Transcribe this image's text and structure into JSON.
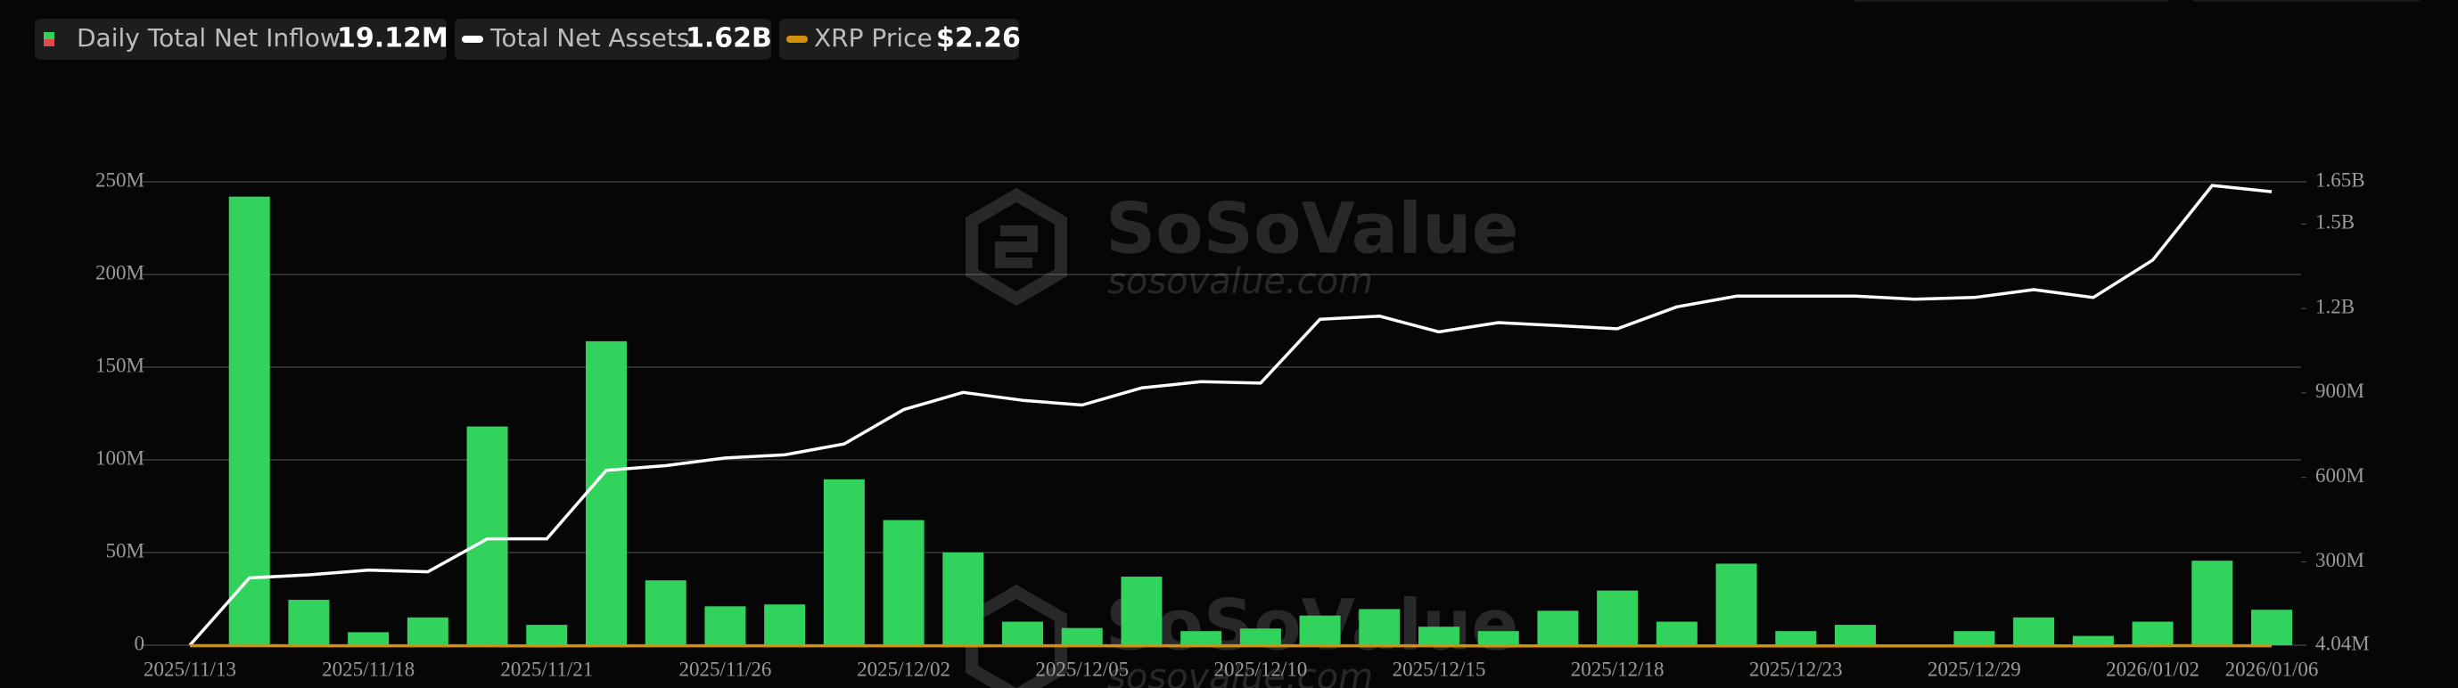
{
  "chart_data": {
    "type": "bar-line",
    "legend": [
      {
        "name": "Daily Total Net Inflow",
        "current": "19.12M"
      },
      {
        "name": "Total Net Assets",
        "current": "1.62B"
      },
      {
        "name": "XRP Price",
        "current": "$2.26"
      }
    ],
    "watermark": {
      "brand": "SoSoValue",
      "site": "sosovalue.com"
    },
    "categories": [
      "2025/11/13",
      null,
      null,
      "2025/11/18",
      null,
      null,
      "2025/11/21",
      null,
      null,
      "2025/11/26",
      null,
      null,
      "2025/12/02",
      null,
      null,
      "2025/12/05",
      null,
      null,
      "2025/12/10",
      null,
      null,
      "2025/12/15",
      null,
      null,
      "2025/12/18",
      null,
      null,
      "2025/12/23",
      null,
      null,
      "2025/12/29",
      null,
      null,
      "2026/01/02",
      null,
      "2026/01/06"
    ],
    "series": [
      {
        "name": "Daily Total Net Inflow",
        "color": "#32d35c",
        "axis": "y",
        "values": [
          0,
          242,
          24.5,
          7,
          15,
          118,
          11,
          164,
          35,
          21,
          22,
          89.5,
          67.5,
          50,
          12.7,
          9.3,
          37,
          7.6,
          9,
          16,
          19.5,
          10,
          7.6,
          18.6,
          29.5,
          12.7,
          44,
          7.6,
          11,
          0,
          7.6,
          15,
          5,
          12.7,
          45.6,
          19.12
        ]
      },
      {
        "name": "Total Net Assets",
        "color": "#ffffff",
        "axis": "y2",
        "values": [
          4.04,
          243,
          254,
          271,
          265,
          382,
          382,
          625,
          642,
          669,
          680,
          719,
          841,
          902,
          874,
          857,
          918,
          940,
          935,
          1162,
          1173,
          1117,
          1150,
          1139,
          1128,
          1206,
          1244,
          1244,
          1244,
          1233,
          1239,
          1267,
          1239,
          1372,
          1637,
          1615
        ]
      },
      {
        "name": "XRP Price",
        "color": "#d4900a",
        "axis": "y2",
        "values": [
          2.4,
          2.4,
          2.2,
          2.1,
          2.15,
          2.05,
          1.95,
          2.0,
          2.2,
          2.2,
          2.2,
          2.05,
          2.1,
          2.15,
          2.05,
          2.0,
          2.05,
          2.0,
          2.05,
          2.0,
          2.0,
          2.0,
          1.9,
          1.85,
          1.85,
          1.9,
          1.95,
          1.9,
          1.85,
          1.85,
          1.85,
          1.9,
          1.85,
          2.0,
          2.35,
          2.26
        ]
      }
    ],
    "ylim": [
      0,
      250
    ],
    "yticks": [
      0,
      {
        "value": 50,
        "label": "50M"
      },
      {
        "value": 100,
        "label": "100M"
      },
      {
        "value": 150,
        "label": "150M"
      },
      {
        "value": 200,
        "label": "200M"
      },
      {
        "value": 250,
        "label": "250M"
      }
    ],
    "y2lim": [
      4.04,
      1650
    ],
    "y2ticks": [
      {
        "value": 4.04,
        "label": "4.04M"
      },
      {
        "value": 300,
        "label": "300M"
      },
      {
        "value": 600,
        "label": "600M"
      },
      {
        "value": 900,
        "label": "900M"
      },
      {
        "value": 1200,
        "label": "1.2B"
      },
      {
        "value": 1500,
        "label": "1.5B"
      },
      {
        "value": 1650,
        "label": "1.65B"
      }
    ],
    "grid": true
  }
}
